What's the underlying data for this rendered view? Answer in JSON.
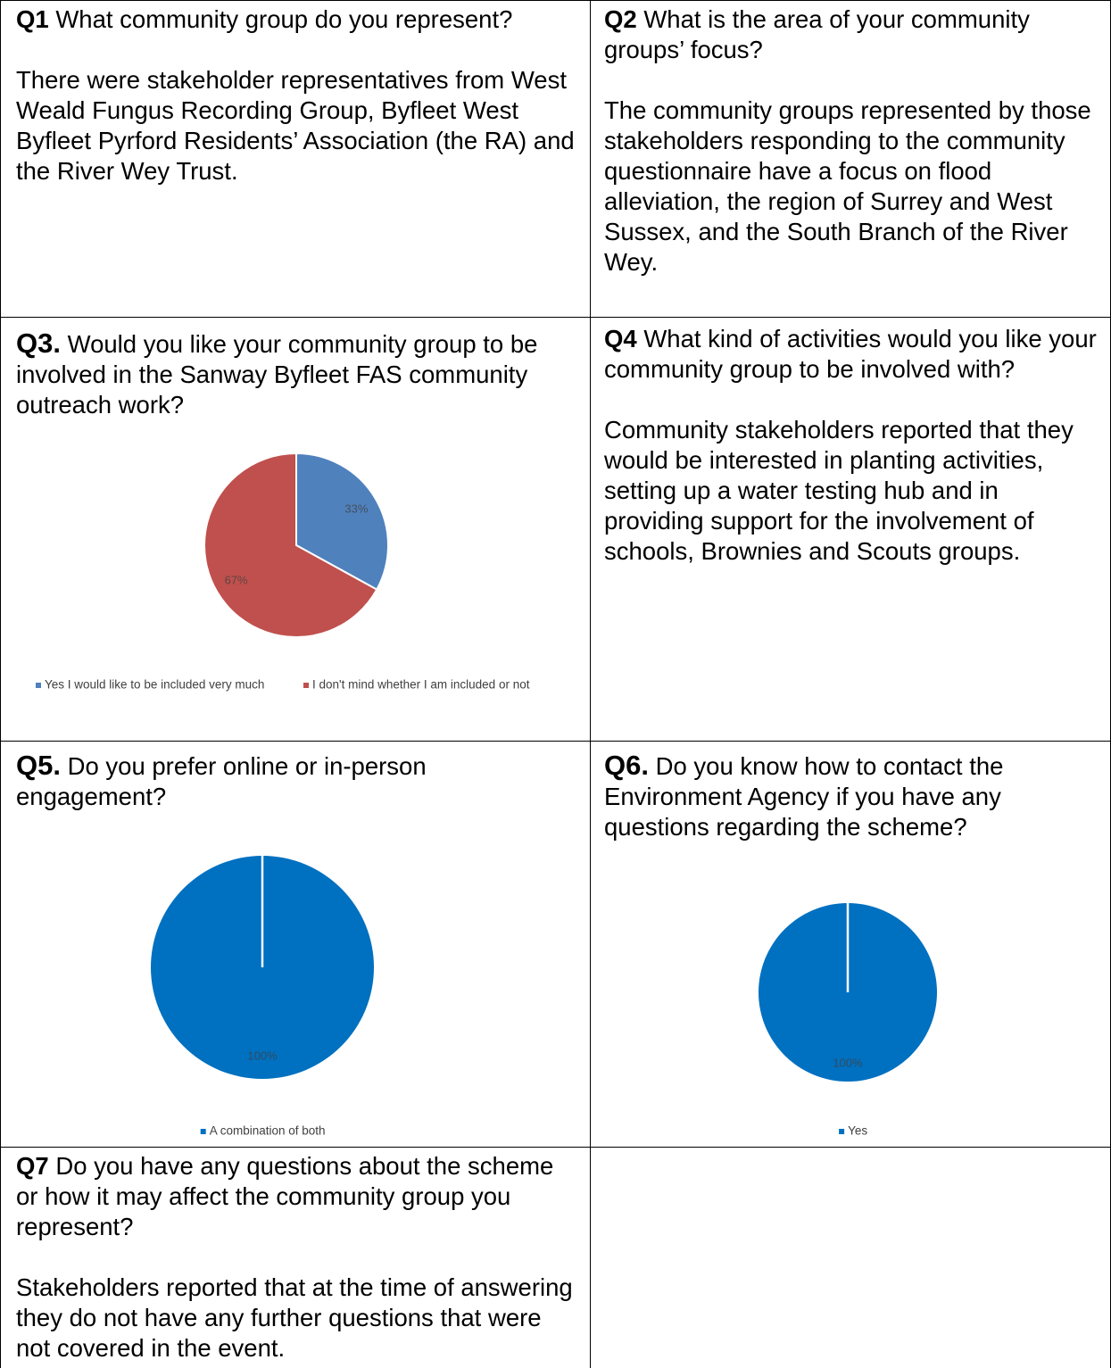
{
  "cells": [
    {
      "label": "Q1",
      "question": "What community group do you represent?",
      "answer": "There were stakeholder representatives from West Weald Fungus Recording Group, Byfleet West Byfleet Pyrford Residents’ Association (the RA) and the River Wey Trust."
    },
    {
      "label": "Q2",
      "question": "What is the area of your community groups’ focus?",
      "answer": "The community groups represented by those stakeholders responding to the community questionnaire have a focus on flood alleviation, the region of Surrey and West Sussex, and the South Branch of the River Wey."
    },
    {
      "label": "Q3.",
      "question": "Would you like your community group to be involved in the Sanway Byfleet FAS community outreach work?"
    },
    {
      "label": "Q4",
      "question": "What kind of activities would you like your community group to be involved with?",
      "answer": "Community stakeholders reported that they would be interested in planting activities, setting up a water testing hub and in providing support for the involvement of schools, Brownies and Scouts groups."
    },
    {
      "label": "Q5.",
      "question": "Do you prefer online or in-person engagement?"
    },
    {
      "label": "Q6.",
      "question": "Do you know how to contact the Environment Agency if you have any questions regarding the scheme?"
    },
    {
      "label": "Q7",
      "question": "Do you have any questions about the scheme or how it may affect the community group you represent?",
      "answer": "Stakeholders reported that at the time of answering they do not have any further questions that were not covered in the event."
    }
  ],
  "chart_data": [
    {
      "type": "pie",
      "categories": [
        "Yes I would like to be included very much",
        "I don't mind whether I am included or not"
      ],
      "values": [
        33,
        67
      ],
      "value_labels": [
        "33%",
        "67%"
      ],
      "colors": [
        "#4f81bd",
        "#c0504d"
      ]
    },
    {
      "type": "pie",
      "categories": [
        "A combination of both"
      ],
      "values": [
        100
      ],
      "value_labels": [
        "100%"
      ],
      "colors": [
        "#0070c0"
      ]
    },
    {
      "type": "pie",
      "categories": [
        "Yes"
      ],
      "values": [
        100
      ],
      "value_labels": [
        "100%"
      ],
      "colors": [
        "#0070c0"
      ]
    }
  ]
}
